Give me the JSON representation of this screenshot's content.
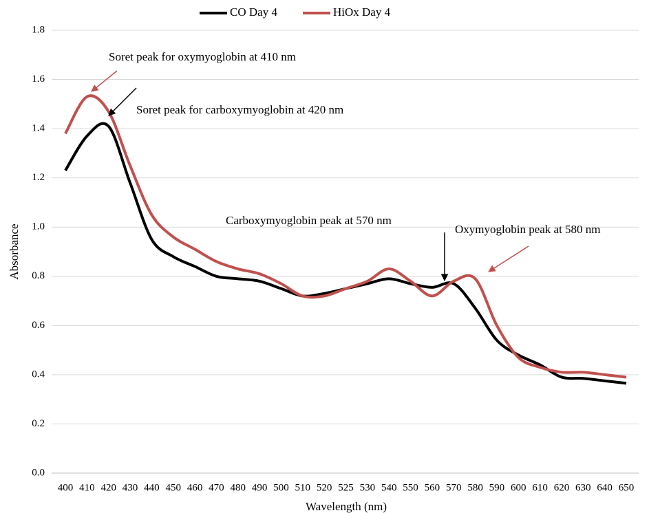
{
  "chart_data": {
    "type": "line",
    "x_label": "Wavelength (nm)",
    "y_label": "Absorbance",
    "categories": [
      "400",
      "410",
      "420",
      "430",
      "440",
      "450",
      "460",
      "470",
      "480",
      "490",
      "500",
      "510",
      "520",
      "525",
      "530",
      "540",
      "550",
      "560",
      "570",
      "580",
      "590",
      "600",
      "610",
      "620",
      "630",
      "640",
      "650"
    ],
    "series": [
      {
        "name": "CO Day 4",
        "color": "#000000",
        "values": [
          1.23,
          1.37,
          1.41,
          1.18,
          0.95,
          0.88,
          0.84,
          0.8,
          0.79,
          0.78,
          0.75,
          0.72,
          0.73,
          0.75,
          0.77,
          0.79,
          0.77,
          0.755,
          0.77,
          0.67,
          0.54,
          0.48,
          0.44,
          0.39,
          0.385,
          0.375,
          0.365
        ]
      },
      {
        "name": "HiOx Day 4",
        "color": "#c0504d",
        "values": [
          1.38,
          1.53,
          1.47,
          1.25,
          1.05,
          0.96,
          0.91,
          0.86,
          0.83,
          0.81,
          0.77,
          0.72,
          0.72,
          0.75,
          0.78,
          0.83,
          0.78,
          0.72,
          0.78,
          0.79,
          0.6,
          0.47,
          0.43,
          0.41,
          0.41,
          0.4,
          0.39
        ]
      }
    ],
    "ylim": [
      0,
      1.8
    ],
    "yticks": [
      {
        "value": 0,
        "label": "0.0"
      },
      0.2,
      0.4,
      0.6,
      0.8,
      {
        "value": 1,
        "label": "1.0"
      },
      1.2,
      1.4,
      1.6,
      1.8
    ],
    "grid": true,
    "legend": "top",
    "annotations": [
      "Soret peak for oxymyoglobin at 410 nm",
      "Soret peak for carboxymyoglobin at 420 nm",
      "Carboxymyoglobin peak at 570 nm",
      "Oxymyoglobin peak at 580 nm"
    ]
  }
}
